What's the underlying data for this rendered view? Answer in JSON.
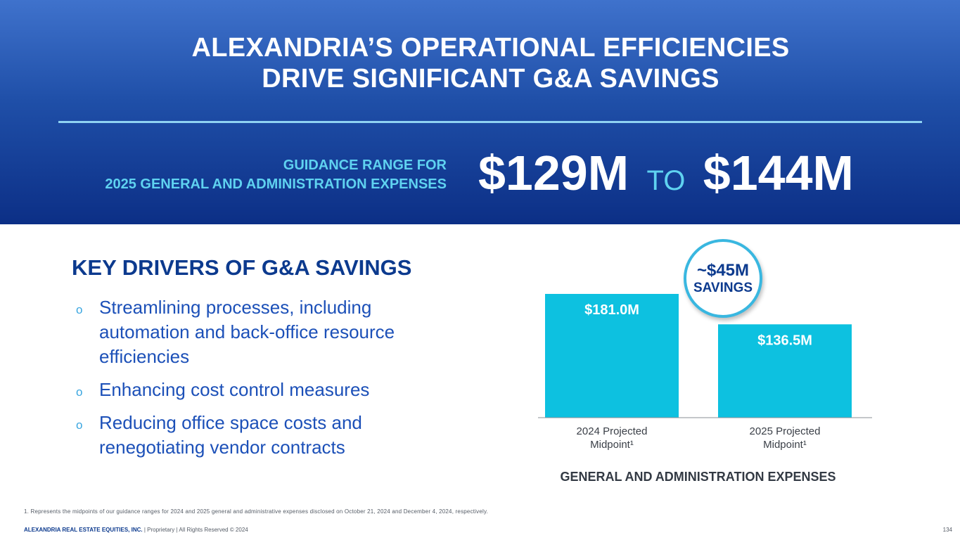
{
  "slide": {
    "title_line1": "ALEXANDRIA’S OPERATIONAL EFFICIENCIES",
    "title_line2": "DRIVE SIGNIFICANT G&A SAVINGS",
    "guidance_label_line1": "GUIDANCE RANGE FOR",
    "guidance_label_line2": "2025 GENERAL AND ADMINISTRATION EXPENSES",
    "guidance_low": "$129M",
    "guidance_to": "TO",
    "guidance_high": "$144M"
  },
  "drivers": {
    "heading": "KEY DRIVERS OF G&A SAVINGS",
    "bullet_symbol": "o",
    "items": [
      "Streamlining processes, including automation and back-office resource efficiencies",
      "Enhancing cost control measures",
      "Reducing office space costs and renegotiating vendor contracts"
    ]
  },
  "chart_data": {
    "type": "bar",
    "title": "GENERAL AND ADMINISTRATION EXPENSES",
    "categories": [
      [
        "2024 Projected",
        "Midpoint¹"
      ],
      [
        "2025 Projected",
        "Midpoint¹"
      ]
    ],
    "values": [
      181.0,
      136.5
    ],
    "data_labels": [
      "$181.0M",
      "$136.5M"
    ],
    "unit": "$M",
    "ylim": [
      0,
      181
    ],
    "xlabel": "",
    "ylabel": "",
    "grid": false,
    "annotation": {
      "amount": "~$45M",
      "label": "SAVINGS"
    },
    "colors": {
      "bar": "#0dc1e0",
      "data_label": "#ffffff",
      "axis": "#8a8f96",
      "tick_label": "#3a3f47"
    }
  },
  "footnote": "1.   Represents the midpoints of our guidance ranges for 2024 and 2025 general and administrative expenses disclosed on October 21, 2024 and December 4, 2024, respectively.",
  "footer": {
    "company": "ALEXANDRIA REAL ESTATE EQUITIES, INC.",
    "text": " | Proprietary | All Rights Reserved © 2024",
    "page_number": "134"
  }
}
